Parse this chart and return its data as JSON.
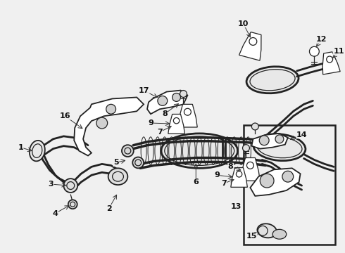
{
  "bg_color": "#f0f0f0",
  "line_color": "#222222",
  "fig_width": 4.9,
  "fig_height": 3.6,
  "dpi": 100
}
